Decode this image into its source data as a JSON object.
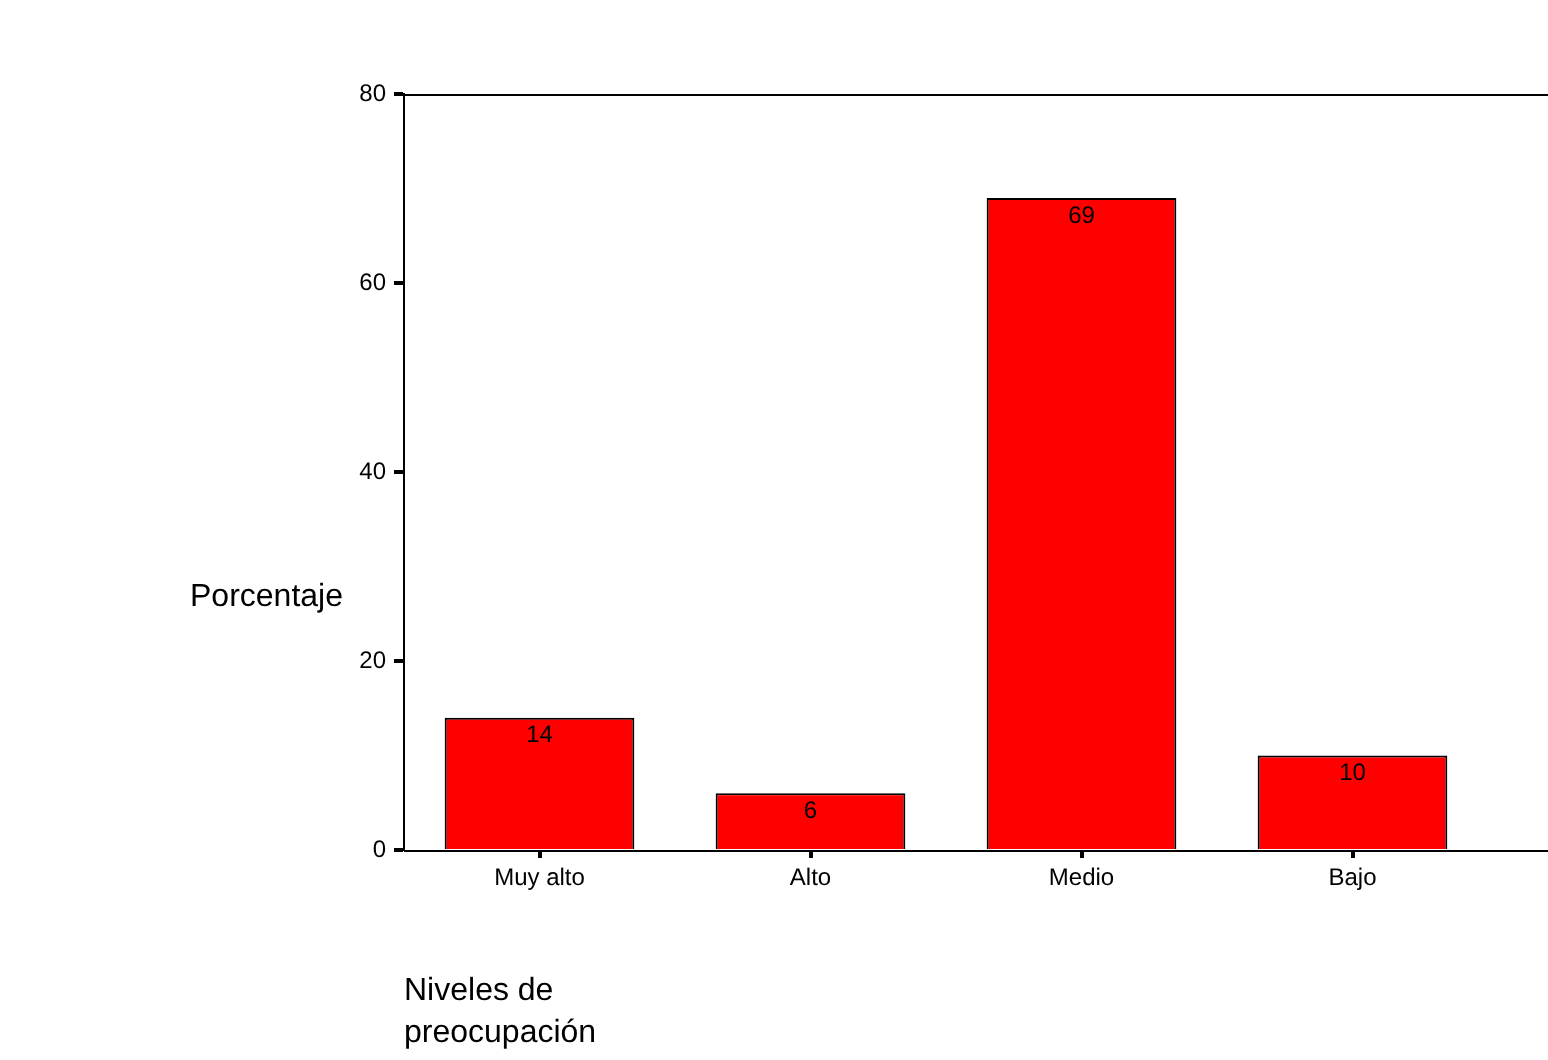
{
  "chart_data": {
    "type": "bar",
    "xlabel": "Niveles de preocupación",
    "ylabel": "Porcentaje",
    "categories": [
      "Muy alto",
      "Alto",
      "Medio",
      "Bajo"
    ],
    "values": [
      14,
      6,
      69,
      10
    ],
    "color": "#ff0000",
    "ylim": [
      0,
      80
    ],
    "yticks": [
      0,
      20,
      40,
      60,
      80
    ],
    "grid": false,
    "legend": false,
    "data_labels": true
  }
}
